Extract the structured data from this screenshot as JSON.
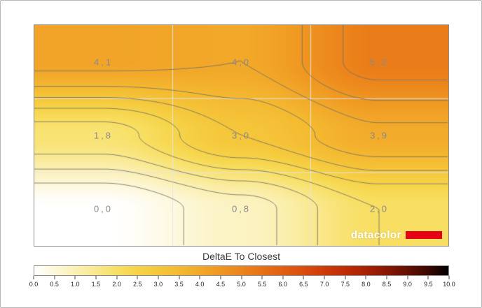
{
  "chart_data": {
    "type": "heatmap",
    "subtype": "contour",
    "title": "DeltaE To Closest",
    "grid_values": [
      [
        4.1,
        4.0,
        5.2
      ],
      [
        1.8,
        3.0,
        3.9
      ],
      [
        0.0,
        0.8,
        2.0
      ]
    ],
    "grid_labels": [
      [
        "4,1",
        "4,0",
        "5,2"
      ],
      [
        "1,8",
        "3,0",
        "3,9"
      ],
      [
        "0,0",
        "0,8",
        "2,0"
      ]
    ],
    "contour_interval": 0.5,
    "grid_lines": {
      "columns": 3,
      "rows": 3
    },
    "colorbar": {
      "min": 0.0,
      "max": 10.0,
      "tick_step": 0.5,
      "ticks": [
        "0.0",
        "0.5",
        "1.0",
        "1.5",
        "2.0",
        "2.5",
        "3.0",
        "3.5",
        "4.0",
        "4.5",
        "5.0",
        "5.5",
        "6.0",
        "6.5",
        "7.0",
        "7.5",
        "8.0",
        "8.5",
        "9.0",
        "9.5",
        "10.0"
      ]
    },
    "colormap": [
      {
        "v": 0.0,
        "c": "#ffffff"
      },
      {
        "v": 0.5,
        "c": "#fdf7d9"
      },
      {
        "v": 1.0,
        "c": "#fbf0b4"
      },
      {
        "v": 1.5,
        "c": "#f9e88d"
      },
      {
        "v": 2.0,
        "c": "#f8df63"
      },
      {
        "v": 2.5,
        "c": "#f6d348"
      },
      {
        "v": 3.0,
        "c": "#f5c63a"
      },
      {
        "v": 3.5,
        "c": "#f4b930"
      },
      {
        "v": 4.0,
        "c": "#f2a829"
      },
      {
        "v": 4.5,
        "c": "#ef9621"
      },
      {
        "v": 5.0,
        "c": "#ec841b"
      },
      {
        "v": 5.5,
        "c": "#e77116"
      },
      {
        "v": 6.0,
        "c": "#e15f11"
      },
      {
        "v": 6.5,
        "c": "#d94d0d"
      },
      {
        "v": 7.0,
        "c": "#ce3b09"
      },
      {
        "v": 7.5,
        "c": "#bf2c06"
      },
      {
        "v": 8.0,
        "c": "#a72104"
      },
      {
        "v": 8.5,
        "c": "#891703"
      },
      {
        "v": 9.0,
        "c": "#650f02"
      },
      {
        "v": 9.5,
        "c": "#3c0801"
      },
      {
        "v": 10.0,
        "c": "#000000"
      }
    ],
    "logo": {
      "text": "datacolor",
      "accent_color": "#e60013"
    }
  }
}
